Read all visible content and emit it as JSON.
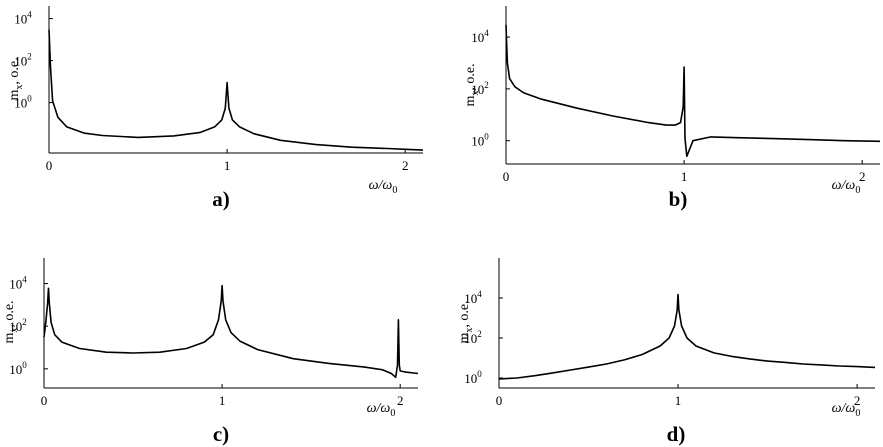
{
  "chart_data": [
    {
      "type": "line",
      "panel_label": "a)",
      "ylabel": "m",
      "ylabel_sub": "x",
      "ylabel_unit": ", o.e.",
      "xlabel_num": "ω/ω",
      "xlabel_sub": "0",
      "xlim": [
        0,
        2.1
      ],
      "ylim_log10": [
        -2.4,
        4.6
      ],
      "yscale": "log",
      "x_ticks": [
        0,
        1,
        2
      ],
      "y_ticks": [
        {
          "base": "10",
          "exp": "0",
          "log": 0
        },
        {
          "base": "10",
          "exp": "2",
          "log": 2
        },
        {
          "base": "10",
          "exp": "4",
          "log": 4
        }
      ],
      "grid": false,
      "series": [
        {
          "x": [
            0,
            0.003,
            0.008,
            0.02,
            0.05,
            0.1,
            0.2,
            0.3,
            0.5,
            0.7,
            0.85,
            0.93,
            0.97,
            0.99,
            1.0,
            1.01,
            1.03,
            1.07,
            1.15,
            1.3,
            1.5,
            1.7,
            1.9,
            2.0,
            2.1
          ],
          "y": [
            3000,
            800,
            60,
            1.2,
            0.2,
            0.07,
            0.035,
            0.027,
            0.022,
            0.026,
            0.038,
            0.07,
            0.15,
            0.55,
            9,
            0.55,
            0.15,
            0.07,
            0.033,
            0.016,
            0.01,
            0.0075,
            0.0065,
            0.006,
            0.0055
          ]
        }
      ]
    },
    {
      "type": "line",
      "panel_label": "b)",
      "ylabel": "m",
      "ylabel_sub": "x",
      "ylabel_unit": ", o.e.",
      "xlabel_num": "ω/ω",
      "xlabel_sub": "0",
      "xlim": [
        0,
        2.1
      ],
      "ylim_log10": [
        -0.9,
        5.2
      ],
      "yscale": "log",
      "x_ticks": [
        0,
        1,
        2
      ],
      "y_ticks": [
        {
          "base": "10",
          "exp": "0",
          "log": 0
        },
        {
          "base": "10",
          "exp": "2",
          "log": 2
        },
        {
          "base": "10",
          "exp": "4",
          "log": 4
        }
      ],
      "grid": false,
      "series": [
        {
          "x": [
            0,
            0.003,
            0.008,
            0.02,
            0.05,
            0.1,
            0.2,
            0.4,
            0.6,
            0.8,
            0.9,
            0.95,
            0.98,
            0.995,
            1.0,
            1.005,
            1.015,
            1.05,
            1.15,
            1.3,
            1.5,
            1.7,
            1.9,
            2.1
          ],
          "y": [
            30000,
            8000,
            1000,
            250,
            120,
            70,
            40,
            18,
            9,
            5,
            4,
            4,
            5,
            20,
            700,
            1.2,
            0.25,
            1.0,
            1.4,
            1.3,
            1.2,
            1.1,
            1.0,
            0.95
          ]
        }
      ]
    },
    {
      "type": "line",
      "panel_label": "c)",
      "ylabel": "m",
      "ylabel_sub": "x",
      "ylabel_unit": ", o.e.",
      "xlabel_num": "ω/ω",
      "xlabel_sub": "0",
      "xlim": [
        0,
        2.1
      ],
      "ylim_log10": [
        -0.9,
        5.2
      ],
      "yscale": "log",
      "x_ticks": [
        0,
        1,
        2
      ],
      "y_ticks": [
        {
          "base": "10",
          "exp": "0",
          "log": 0
        },
        {
          "base": "10",
          "exp": "2",
          "log": 2
        },
        {
          "base": "10",
          "exp": "4",
          "log": 4
        }
      ],
      "grid": false,
      "series": [
        {
          "x": [
            0,
            0.01,
            0.02,
            0.025,
            0.03,
            0.04,
            0.06,
            0.1,
            0.2,
            0.35,
            0.5,
            0.65,
            0.8,
            0.9,
            0.95,
            0.98,
            0.995,
            1.0,
            1.005,
            1.02,
            1.05,
            1.1,
            1.2,
            1.4,
            1.6,
            1.8,
            1.9,
            1.95,
            1.975,
            1.985,
            1.99,
            1.995,
            2.0,
            2.03,
            2.1
          ],
          "y": [
            30,
            150,
            1200,
            6000,
            1200,
            150,
            40,
            18,
            9,
            6,
            5.5,
            6,
            9,
            18,
            40,
            200,
            1500,
            8000,
            1500,
            200,
            50,
            20,
            8,
            3,
            1.8,
            1.2,
            0.9,
            0.6,
            0.4,
            1.5,
            200,
            1.5,
            0.8,
            0.7,
            0.6
          ]
        }
      ]
    },
    {
      "type": "line",
      "panel_label": "d)",
      "ylabel": "m",
      "ylabel_sub": "x",
      "ylabel_unit": ", o.e.",
      "xlabel_num": "ω/ω",
      "xlabel_sub": "0",
      "xlim": [
        0,
        2.1
      ],
      "ylim_log10": [
        -0.5,
        6.0
      ],
      "yscale": "log",
      "x_ticks": [
        0,
        1,
        2
      ],
      "y_ticks": [
        {
          "base": "10",
          "exp": "0",
          "log": 0
        },
        {
          "base": "10",
          "exp": "2",
          "log": 2
        },
        {
          "base": "10",
          "exp": "4",
          "log": 4
        }
      ],
      "grid": false,
      "series": [
        {
          "x": [
            0,
            0.1,
            0.2,
            0.3,
            0.4,
            0.5,
            0.6,
            0.7,
            0.8,
            0.9,
            0.95,
            0.98,
            0.995,
            1.0,
            1.005,
            1.02,
            1.05,
            1.1,
            1.2,
            1.3,
            1.4,
            1.5,
            1.6,
            1.7,
            1.8,
            1.9,
            2.0,
            2.1
          ],
          "y": [
            0.9,
            1.0,
            1.3,
            1.8,
            2.5,
            3.5,
            5,
            8,
            15,
            40,
            100,
            400,
            2500,
            15000,
            2500,
            400,
            100,
            40,
            18,
            12,
            9,
            7,
            6,
            5,
            4.5,
            4,
            3.7,
            3.4
          ]
        }
      ]
    }
  ]
}
